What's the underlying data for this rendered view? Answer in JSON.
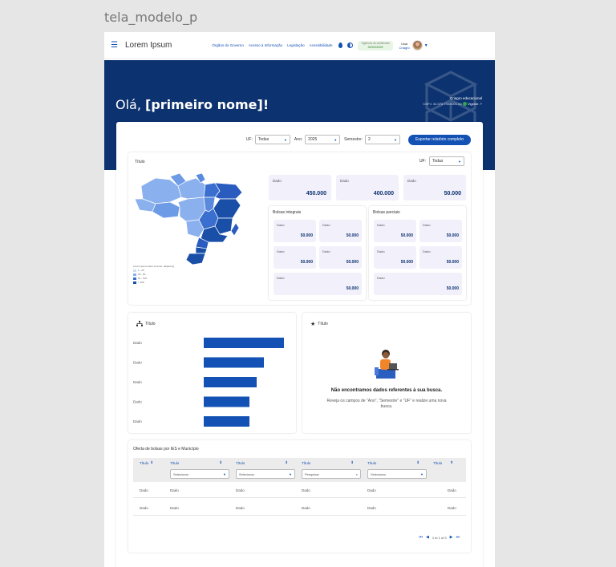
{
  "canvas_label": "tela_modelo_p",
  "header": {
    "menu_icon": "☰",
    "brand": "Lorem Ipsum",
    "nav": [
      "Órgãos do Governo",
      "Acesso à Informação",
      "Legislação",
      "Acessibilidade"
    ],
    "login_line1": "Vigência do certificado",
    "login_line2": "30/04/2025",
    "user_line1": "Usar",
    "user_line2": "Criagro"
  },
  "hero": {
    "greeting_prefix": "Olá, ",
    "greeting_name": "[primeiro nome]!",
    "org_name": "Criagro educacional",
    "org_line2": "CNPJ: 34.576.735/0001-54",
    "verified": "Vigente"
  },
  "filters": {
    "uf_label": "UF:",
    "uf_value": "Todas",
    "ano_label": "Ano:",
    "ano_value": "2025",
    "semestre_label": "Semestre:",
    "semestre_value": "2",
    "export_label": "Exportar relatório completo"
  },
  "section_overview": {
    "title": "Título",
    "uf_label": "UF:",
    "uf_value": "Todas",
    "legend_title": "Lorem ipsum dolor sit amet, adipiscing",
    "legend": [
      "1 - 25",
      "26 - 50",
      "51 - 100",
      "> 100"
    ],
    "stats": [
      {
        "label": "Dado",
        "value": "450.000"
      },
      {
        "label": "Dado",
        "value": "400.000"
      },
      {
        "label": "Dado",
        "value": "50.000"
      }
    ],
    "integral": {
      "title": "Bolsas integrais",
      "items": [
        {
          "label": "Dado",
          "value": "50.000"
        },
        {
          "label": "Dado",
          "value": "50.000"
        },
        {
          "label": "Dado",
          "value": "50.000"
        },
        {
          "label": "Dado",
          "value": "50.000"
        },
        {
          "label": "Dado",
          "value": "50.000"
        }
      ]
    },
    "partial": {
      "title": "Bolsas parciais",
      "items": [
        {
          "label": "Dado",
          "value": "50.000"
        },
        {
          "label": "Dado",
          "value": "50.000"
        },
        {
          "label": "Dado",
          "value": "50.000"
        },
        {
          "label": "Dado",
          "value": "50.000"
        },
        {
          "label": "Dado",
          "value": "50.000"
        }
      ]
    }
  },
  "bar_panel": {
    "title": "Título",
    "categories": [
      "Dado",
      "Dado",
      "Dado",
      "Dado",
      "Dado"
    ],
    "values": [
      100,
      75,
      66,
      57,
      57
    ]
  },
  "empty_panel": {
    "title": "Título",
    "message": "Não encontramos dados referentes à sua busca.",
    "hint": "Reveja os campos de \"Ano\", \"Semestre\" e \"UF\" e realize uma nova busca."
  },
  "table": {
    "title": "Oferta de bolsas por IES e Município",
    "headers": [
      "Título",
      "Título",
      "Título",
      "Título",
      "Título",
      "Título"
    ],
    "filters": [
      "Selecionar",
      "Selecionar",
      "Pesquisar",
      "Selecionar"
    ],
    "rows": [
      [
        "Dado",
        "Dado",
        "Dado",
        "Dado",
        "Dado",
        "Dado"
      ],
      [
        "Dado",
        "Dado",
        "Dado",
        "Dado",
        "Dado",
        "Dado"
      ]
    ],
    "pagination": "1 to 1 of 3"
  },
  "colors": {
    "primary": "#1351b4",
    "hero": "#0c326f",
    "stat_bg": "#f1f0fb",
    "map_dark": "#1a4fa8",
    "map_mid": "#3a6fd0",
    "map_light": "#8ab0ee"
  }
}
